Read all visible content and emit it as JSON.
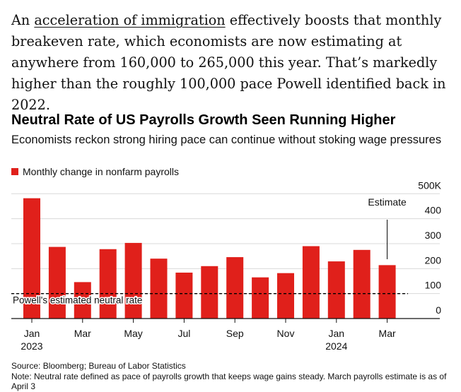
{
  "article": {
    "text_before_link": "An ",
    "link_text": "acceleration of immigration",
    "text_after_link": " effectively boosts that monthly breakeven rate, which economists are now estimating at anywhere from 160,000 to 265,000 this year. That’s markedly higher than the roughly 100,000 pace Powell identified back in 2022."
  },
  "colors": {
    "bar": "#e0201b",
    "grid": "#d9d9d9",
    "axis": "#111111",
    "text": "#111111"
  },
  "chart_data": {
    "type": "bar",
    "title": "Neutral Rate of US Payrolls Growth Seen Running Higher",
    "subtitle": "Economists reckon strong hiring pace can continue without stoking wage pressures",
    "legend": [
      "Monthly change in nonfarm payrolls"
    ],
    "series": [
      {
        "name": "Monthly change in nonfarm payrolls",
        "categories": [
          "Jan 2023",
          "Feb 2023",
          "Mar 2023",
          "Apr 2023",
          "May 2023",
          "Jun 2023",
          "Jul 2023",
          "Aug 2023",
          "Sep 2023",
          "Oct 2023",
          "Nov 2023",
          "Dec 2023",
          "Jan 2024",
          "Feb 2024",
          "Mar 2024"
        ],
        "values": [
          482,
          287,
          146,
          278,
          303,
          240,
          184,
          210,
          246,
          165,
          182,
          290,
          229,
          275,
          214
        ]
      }
    ],
    "x_tick_labels": [
      {
        "index": 0,
        "label": "Jan",
        "sublabel": "2023"
      },
      {
        "index": 2,
        "label": "Mar",
        "sublabel": ""
      },
      {
        "index": 4,
        "label": "May",
        "sublabel": ""
      },
      {
        "index": 6,
        "label": "Jul",
        "sublabel": ""
      },
      {
        "index": 8,
        "label": "Sep",
        "sublabel": ""
      },
      {
        "index": 10,
        "label": "Nov",
        "sublabel": ""
      },
      {
        "index": 12,
        "label": "Jan",
        "sublabel": "2024"
      },
      {
        "index": 14,
        "label": "Mar",
        "sublabel": ""
      }
    ],
    "y_axis": {
      "min": 0,
      "max": 500,
      "ticks": [
        {
          "value": 0,
          "label": "0"
        },
        {
          "value": 100,
          "label": "100"
        },
        {
          "value": 200,
          "label": "200"
        },
        {
          "value": 300,
          "label": "300"
        },
        {
          "value": 400,
          "label": "400"
        },
        {
          "value": 500,
          "label": "500K"
        }
      ]
    },
    "reference_line": {
      "value": 100,
      "label": "Powell's estimated neutral rate",
      "style": "dashed"
    },
    "annotations": [
      {
        "index": 14,
        "text": "Estimate"
      }
    ]
  },
  "footer": {
    "source": "Source: Bloomberg; Bureau of Labor Statistics",
    "note": "Note: Neutral rate defined as pace of payrolls growth that keeps wage gains steady. March payrolls estimate is as of April 3"
  }
}
